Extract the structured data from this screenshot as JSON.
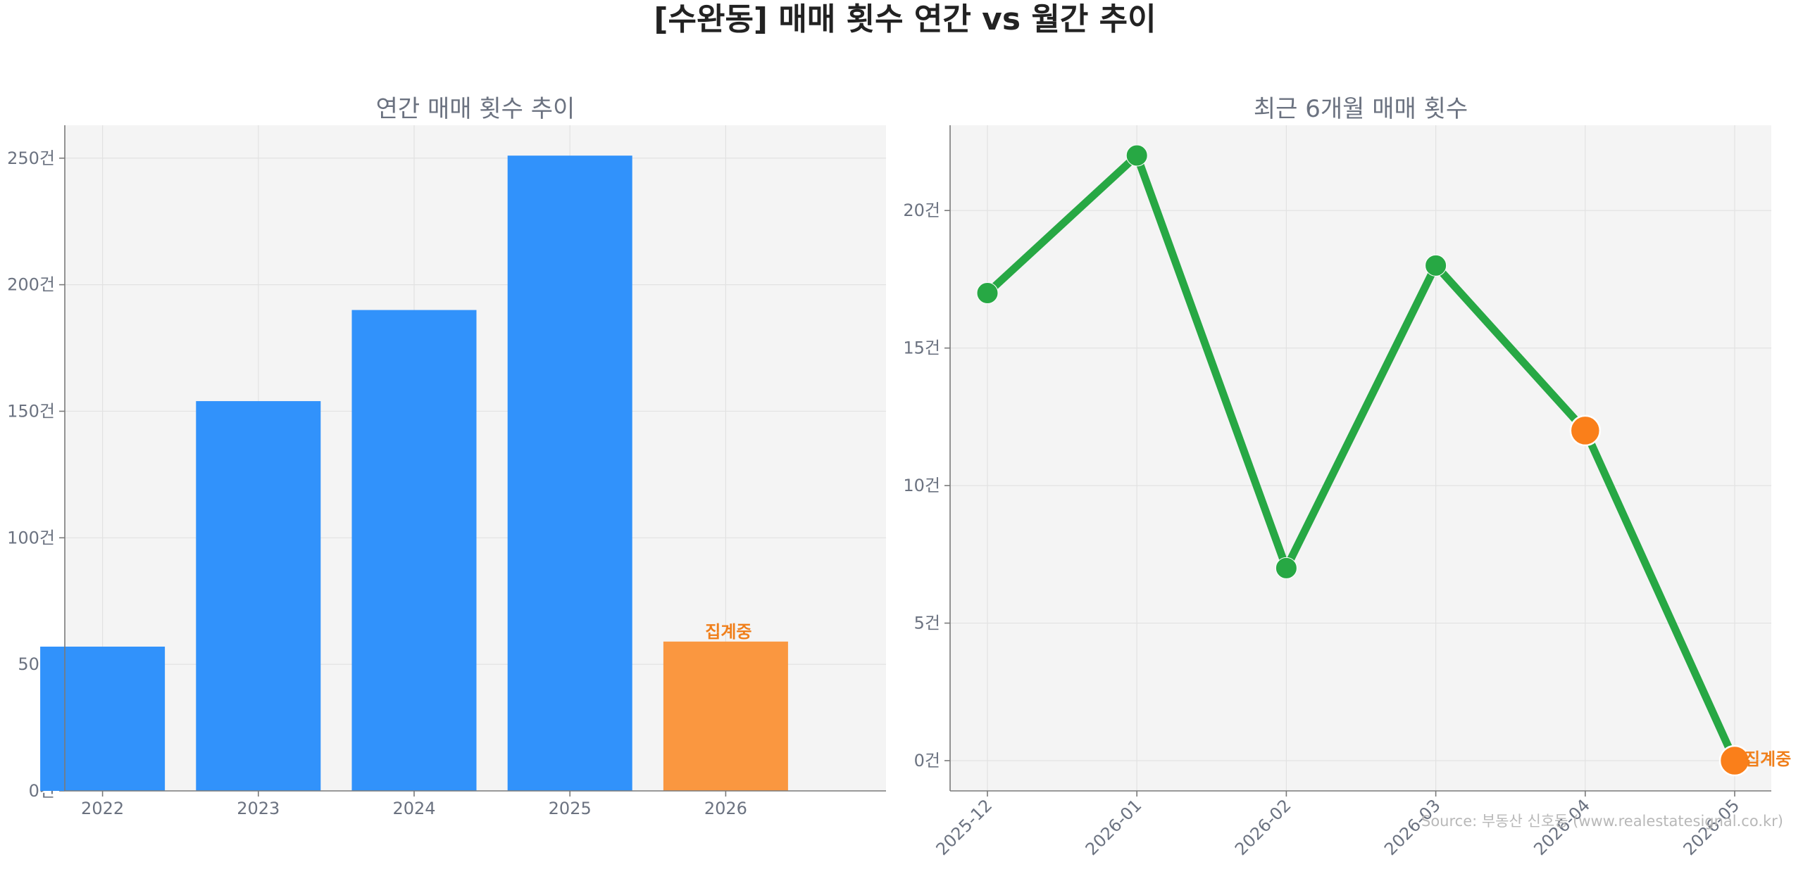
{
  "figure_title": "[수완동] 매매 횟수 연간 vs 월간 추이",
  "source_text": "Source: 부동산 신호등 (www.realestatesignal.co.kr)",
  "colors": {
    "bar": "#3192fb",
    "bar_partial": "#fa9740",
    "line": "#27a844",
    "marker_partial": "#fa7f1a",
    "partial_text": "#f07f1b",
    "axes_bg": "#f4f4f4"
  },
  "chart_data": [
    {
      "type": "bar",
      "title": "연간 매매 횟수 추이",
      "categories": [
        "2022",
        "2023",
        "2024",
        "2025",
        "2026"
      ],
      "values": [
        57,
        154,
        190,
        251,
        59
      ],
      "partial": [
        false,
        false,
        false,
        false,
        true
      ],
      "partial_label": "집계중",
      "ylim": [
        0,
        263
      ],
      "yticks": [
        0,
        50,
        100,
        150,
        200,
        250
      ],
      "ytick_labels": [
        "0건",
        "50건",
        "100건",
        "150건",
        "200건",
        "250건"
      ],
      "grid": true
    },
    {
      "type": "line",
      "title": "최근 6개월 매매 횟수",
      "categories": [
        "2025-12",
        "2026-01",
        "2026-02",
        "2026-03",
        "2026-04",
        "2026-05"
      ],
      "values": [
        17,
        22,
        7,
        18,
        12,
        0
      ],
      "highlight": [
        false,
        false,
        false,
        false,
        true,
        true
      ],
      "partial_label": "집계중",
      "ylim": [
        -1.1,
        23.1
      ],
      "yticks": [
        0,
        5,
        10,
        15,
        20
      ],
      "ytick_labels": [
        "0건",
        "5건",
        "10건",
        "15건",
        "20건"
      ],
      "grid": true
    }
  ]
}
